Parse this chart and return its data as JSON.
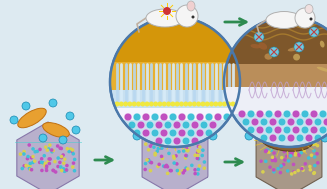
{
  "bg_color": "#ddeaf1",
  "arrow_color": "#2e8b50",
  "panel1": {
    "hexagon_color": "#b8b0cc",
    "hexagon_edge": "#8878aa",
    "bacteria_color": "#e8a030",
    "bacteria_edge": "#c07010",
    "bead_color": "#50c8e8",
    "bead_edge": "#1888b0"
  },
  "panel2": {
    "circle_bg": "#c8e0f0",
    "circle_edge": "#4a78aa",
    "top_orange": "#d4960a",
    "top_orange2": "#e8b030",
    "rod_color": "#b8d8f0",
    "rod_color2": "#d8ecf8",
    "membrane_yellow": "#e8d840",
    "purple": "#c050c0",
    "cyan": "#40c0d8",
    "yellow_tri": "#d8c820",
    "hexagon_color": "#b8b0cc",
    "hexagon_edge": "#8878aa",
    "bacteria_color": "#e8a030",
    "bead_color": "#50c8e8",
    "bead_edge": "#1888b0",
    "loop_color": "#2a5a7a"
  },
  "panel3": {
    "circle_bg": "#c8e0f0",
    "circle_edge": "#4a78aa",
    "top_brown": "#7a5020",
    "top_tan": "#b88040",
    "mid_white": "#e8e8e8",
    "purple": "#c050c0",
    "cyan": "#40c0d8",
    "yellow_tri": "#d8c820",
    "hexagon_color": "#a89888",
    "hexagon_edge": "#706050",
    "bacteria_color": "#9a7040",
    "bead_color": "#50c8e8",
    "bead_edge": "#1888b0",
    "loop_color": "#2a5a7a",
    "wound_brown": "#8a6030",
    "wound_dark": "#604020"
  }
}
